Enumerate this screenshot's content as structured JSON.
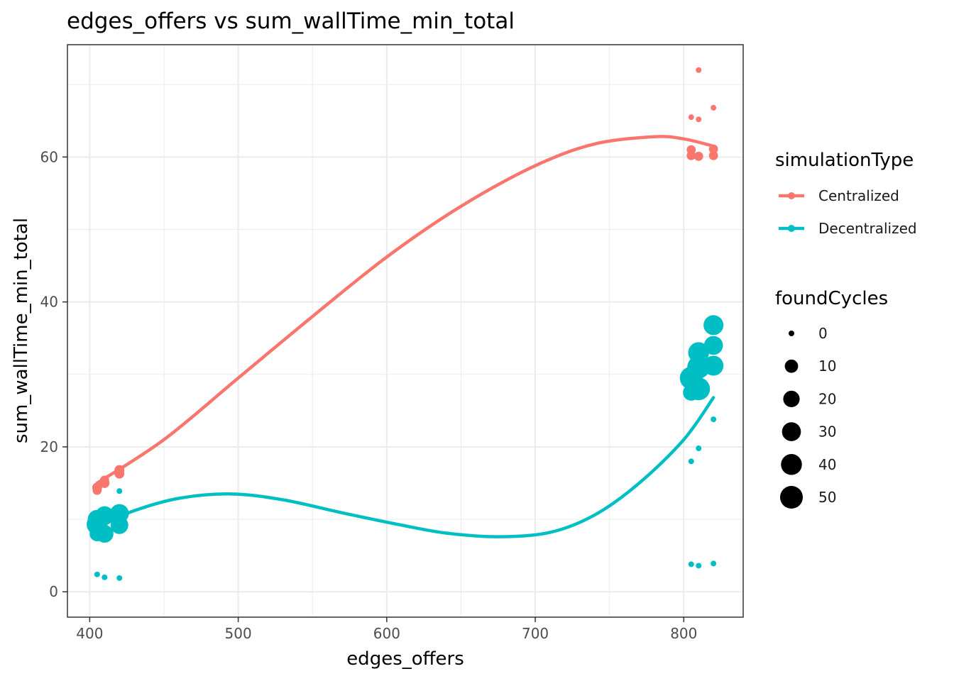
{
  "chart_data": {
    "type": "scatter",
    "title": "edges_offers  vs  sum_wallTime_min_total",
    "xlabel": "edges_offers",
    "ylabel": "sum_wallTime_min_total",
    "xlim": [
      385,
      840
    ],
    "ylim": [
      -3.5,
      75.5
    ],
    "xticks": [
      400,
      500,
      600,
      700,
      800
    ],
    "yticks": [
      0,
      20,
      40,
      60
    ],
    "grid": true,
    "legend_position": "right",
    "color_legend": {
      "title": "simulationType",
      "entries": [
        {
          "label": "Centralized",
          "color": "#f8766d"
        },
        {
          "label": "Decentralized",
          "color": "#00bfc4"
        }
      ]
    },
    "size_legend": {
      "title": "foundCycles",
      "entries": [
        {
          "label": "0",
          "value": 0
        },
        {
          "label": "10",
          "value": 10
        },
        {
          "label": "20",
          "value": 20
        },
        {
          "label": "30",
          "value": 30
        },
        {
          "label": "40",
          "value": 40
        },
        {
          "label": "50",
          "value": 50
        }
      ]
    },
    "series": [
      {
        "name": "Centralized",
        "color": "#f8766d",
        "points": [
          {
            "x": 405,
            "y": 14.0,
            "size": 2
          },
          {
            "x": 405,
            "y": 14.4,
            "size": 3
          },
          {
            "x": 410,
            "y": 15.0,
            "size": 3
          },
          {
            "x": 410,
            "y": 15.4,
            "size": 2
          },
          {
            "x": 420,
            "y": 16.3,
            "size": 3
          },
          {
            "x": 420,
            "y": 16.8,
            "size": 3
          },
          {
            "x": 805,
            "y": 65.5,
            "size": 0
          },
          {
            "x": 805,
            "y": 61.0,
            "size": 2
          },
          {
            "x": 805,
            "y": 60.2,
            "size": 2
          },
          {
            "x": 810,
            "y": 72.0,
            "size": 0
          },
          {
            "x": 810,
            "y": 65.2,
            "size": 0
          },
          {
            "x": 810,
            "y": 60.1,
            "size": 2
          },
          {
            "x": 820,
            "y": 66.8,
            "size": 0
          },
          {
            "x": 820,
            "y": 61.1,
            "size": 2
          },
          {
            "x": 820,
            "y": 60.2,
            "size": 2
          }
        ],
        "trend": [
          {
            "x": 405,
            "y": 15.0
          },
          {
            "x": 450,
            "y": 21.0
          },
          {
            "x": 500,
            "y": 29.5
          },
          {
            "x": 550,
            "y": 38.0
          },
          {
            "x": 600,
            "y": 46.2
          },
          {
            "x": 650,
            "y": 53.2
          },
          {
            "x": 700,
            "y": 58.8
          },
          {
            "x": 740,
            "y": 61.8
          },
          {
            "x": 780,
            "y": 62.8
          },
          {
            "x": 800,
            "y": 62.5
          },
          {
            "x": 820,
            "y": 61.5
          }
        ]
      },
      {
        "name": "Decentralized",
        "color": "#00bfc4",
        "points": [
          {
            "x": 405,
            "y": 8.0,
            "size": 15
          },
          {
            "x": 405,
            "y": 9.3,
            "size": 40
          },
          {
            "x": 405,
            "y": 10.0,
            "size": 30
          },
          {
            "x": 405,
            "y": 2.4,
            "size": 0
          },
          {
            "x": 410,
            "y": 8.0,
            "size": 25
          },
          {
            "x": 410,
            "y": 10.5,
            "size": 30
          },
          {
            "x": 410,
            "y": 2.0,
            "size": 0
          },
          {
            "x": 420,
            "y": 9.2,
            "size": 25
          },
          {
            "x": 420,
            "y": 10.8,
            "size": 30
          },
          {
            "x": 420,
            "y": 13.9,
            "size": 0
          },
          {
            "x": 420,
            "y": 1.9,
            "size": 0
          },
          {
            "x": 805,
            "y": 29.5,
            "size": 50
          },
          {
            "x": 805,
            "y": 27.5,
            "size": 20
          },
          {
            "x": 805,
            "y": 18.0,
            "size": 0
          },
          {
            "x": 805,
            "y": 3.8,
            "size": 0
          },
          {
            "x": 810,
            "y": 33.0,
            "size": 40
          },
          {
            "x": 810,
            "y": 31.0,
            "size": 50
          },
          {
            "x": 810,
            "y": 28.0,
            "size": 50
          },
          {
            "x": 810,
            "y": 19.8,
            "size": 0
          },
          {
            "x": 810,
            "y": 3.6,
            "size": 0
          },
          {
            "x": 820,
            "y": 36.8,
            "size": 35
          },
          {
            "x": 820,
            "y": 34.0,
            "size": 30
          },
          {
            "x": 820,
            "y": 31.2,
            "size": 35
          },
          {
            "x": 820,
            "y": 23.8,
            "size": 0
          },
          {
            "x": 820,
            "y": 3.9,
            "size": 0
          }
        ],
        "trend": [
          {
            "x": 405,
            "y": 9.0
          },
          {
            "x": 430,
            "y": 11.2
          },
          {
            "x": 460,
            "y": 12.9
          },
          {
            "x": 495,
            "y": 13.5
          },
          {
            "x": 530,
            "y": 12.7
          },
          {
            "x": 570,
            "y": 10.9
          },
          {
            "x": 610,
            "y": 9.2
          },
          {
            "x": 640,
            "y": 8.1
          },
          {
            "x": 675,
            "y": 7.6
          },
          {
            "x": 710,
            "y": 8.2
          },
          {
            "x": 740,
            "y": 10.6
          },
          {
            "x": 770,
            "y": 15.0
          },
          {
            "x": 800,
            "y": 21.0
          },
          {
            "x": 820,
            "y": 26.8
          }
        ]
      }
    ]
  }
}
